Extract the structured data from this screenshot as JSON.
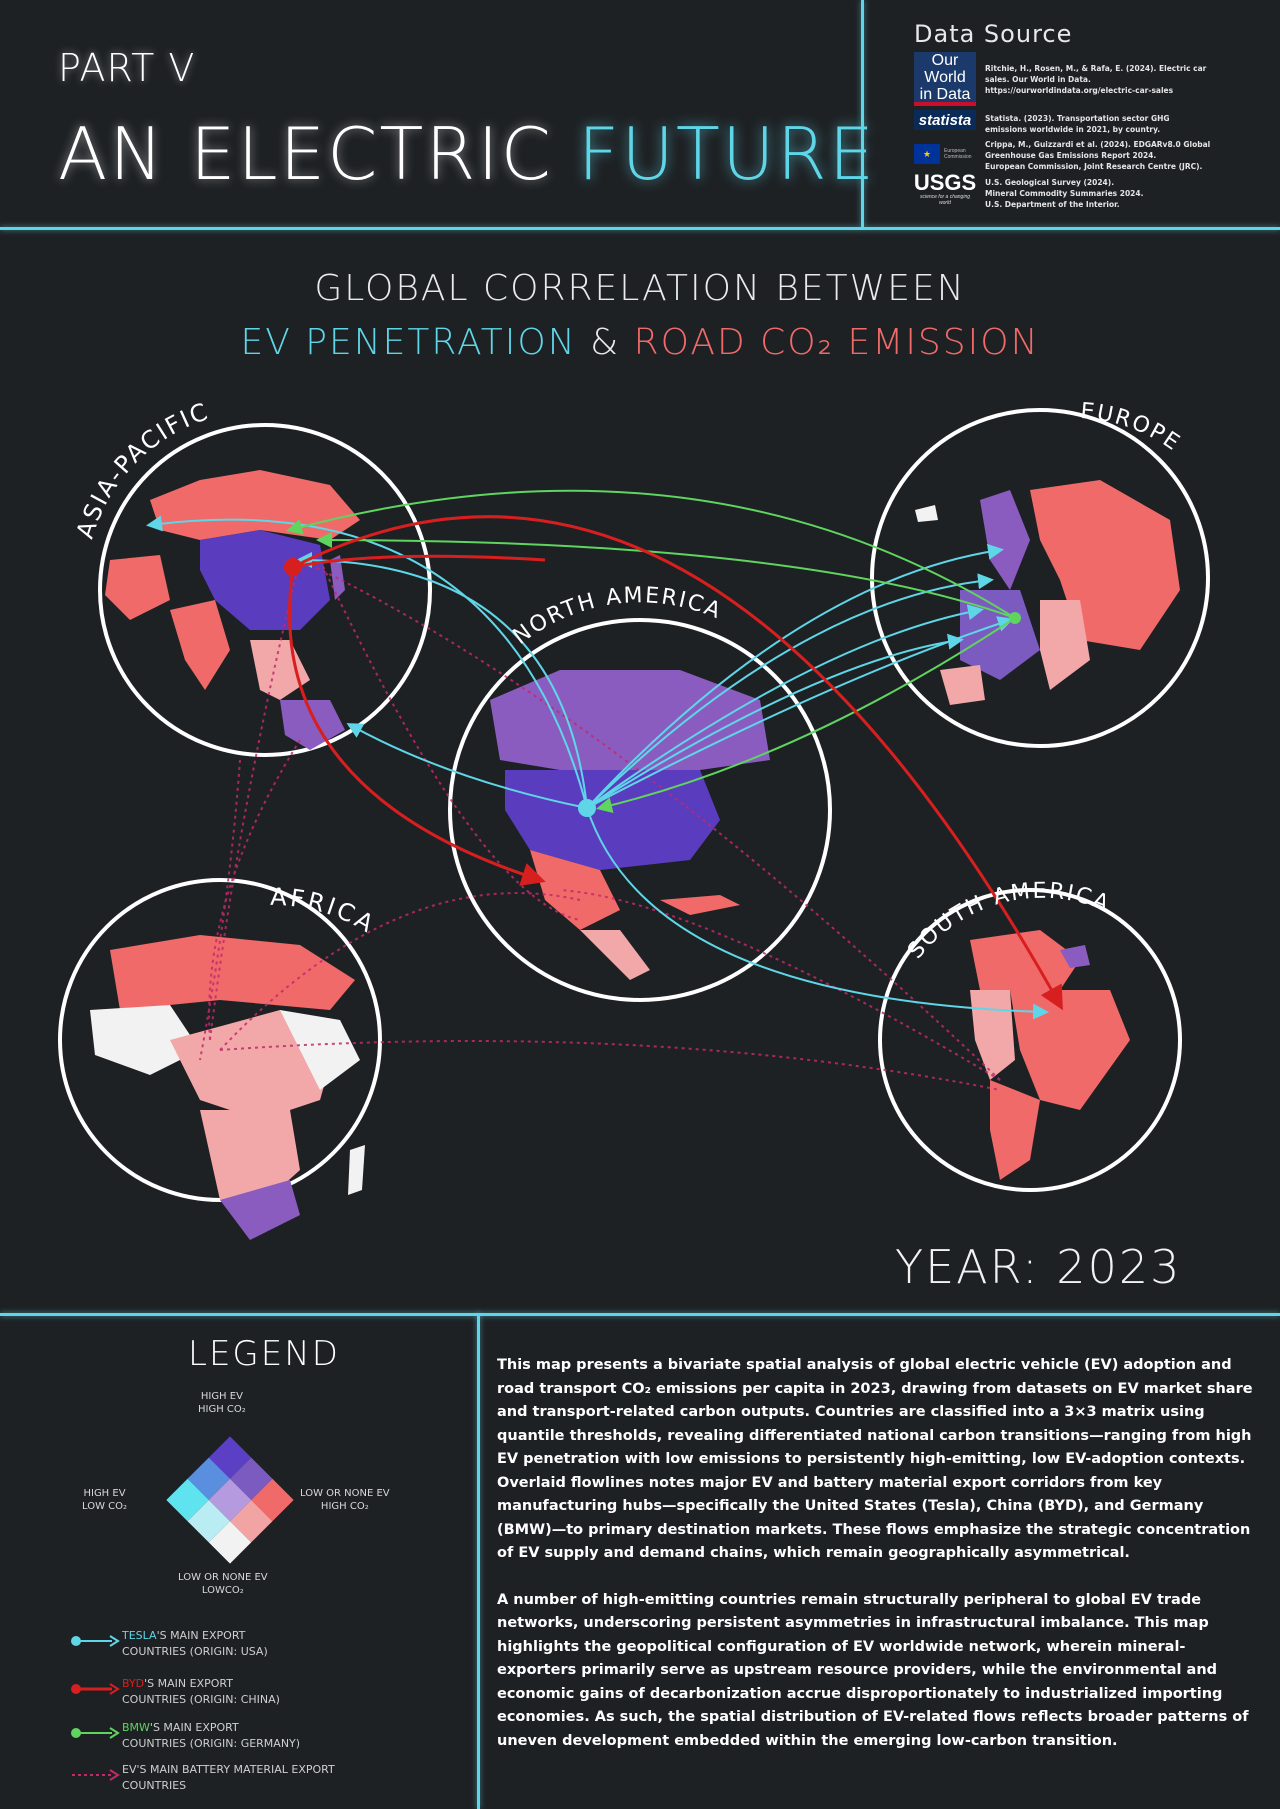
{
  "header": {
    "part": "PART V",
    "title_main": "AN ELECTRIC",
    "title_accent": "FUTURE"
  },
  "data_source": {
    "title": "Data Source",
    "logos": {
      "owid": "Our World in Data",
      "owid_line1": "Our World",
      "owid_line2": "in Data",
      "statista": "statista",
      "eu_line1": "European",
      "eu_line2": "Commission",
      "usgs": "USGS",
      "usgs_tagline": "science for a changing world"
    },
    "lines": [
      "Ritchie, H., Rosen, M., & Rafa, E. (2024). Electric car",
      "sales. Our World in Data.",
      "https://ourworldindata.org/electric-car-sales",
      "Statista. (2023). Transportation sector GHG",
      "emissions worldwide in 2021, by country.",
      "Crippa, M., Guizzardi et al. (2024). EDGARv8.0 Global",
      "Greenhouse Gas Emissions Report 2024.",
      "European Commission, Joint Research Centre (JRC).",
      "U.S. Geological Survey (2024).",
      "Mineral Commodity Summaries 2024.",
      "U.S. Department of the Interior."
    ]
  },
  "map": {
    "heading_line1": "GLOBAL CORRELATION BETWEEN",
    "heading_ev": "EV PENETRATION",
    "heading_amp": "&",
    "heading_co2": "ROAD CO₂ EMISSION",
    "regions": {
      "asia": "ASIA-PACIFIC",
      "europe": "EUROPE",
      "north_america": "NORTH AMERICA",
      "africa": "AFRICA",
      "south_america": "SOUTH AMERICA"
    },
    "year": "YEAR: 2023",
    "colors": {
      "tesla": "#5fd6e8",
      "byd": "#d81f1f",
      "bmw": "#5fd45f",
      "battery": "#c02a6a",
      "high_ev_high_co2": "#5a3dbf",
      "high_ev_mid": "#8a5cc0",
      "low_ev_high_co2": "#f06a6a",
      "low_ev_mid": "#f2a8a8",
      "low_ev_low_co2": "#f2f2f2"
    }
  },
  "legend": {
    "title": "LEGEND",
    "top": [
      "HIGH EV",
      "HIGH CO₂"
    ],
    "left": [
      "HIGH EV",
      "LOW CO₂"
    ],
    "right": [
      "LOW OR NONE EV",
      "HIGH CO₂"
    ],
    "bottom": [
      "LOW OR NONE EV",
      "LOWCO₂"
    ],
    "grid_colors": [
      "#5b3fc4",
      "#7b5bc0",
      "#f06a6a",
      "#5a8fe0",
      "#b59adf",
      "#f2a3a3",
      "#5fe3ef",
      "#b9ecf3",
      "#f2f2f2"
    ],
    "flows": [
      {
        "brand": "TESLA",
        "rest": "'S MAIN EXPORT",
        "line2": "COUNTRIES (ORIGIN: USA)",
        "color": "#5fd6e8"
      },
      {
        "brand": "BYD",
        "rest": "'S MAIN EXPORT",
        "line2": "COUNTRIES (ORIGIN: CHINA)",
        "color": "#d81f1f"
      },
      {
        "brand": "BMW",
        "rest": "'S MAIN EXPORT",
        "line2": "COUNTRIES (ORIGIN: GERMANY)",
        "color": "#5fd45f"
      },
      {
        "brand": "",
        "rest": "EV'S MAIN BATTERY MATERIAL EXPORT",
        "line2": "COUNTRIES",
        "color": "#c02a6a"
      }
    ]
  },
  "description": {
    "p1": "This map presents a bivariate spatial analysis of global electric vehicle (EV) adoption and road transport CO₂ emissions per capita in 2023, drawing from datasets on EV market share and transport-related carbon outputs. Countries are classified into a 3×3 matrix using quantile thresholds, revealing differentiated national carbon transitions—ranging from high EV penetration with low emissions to persistently high-emitting, low EV-adoption contexts. Overlaid flowlines notes major EV and battery material export corridors from key manufacturing hubs—specifically the United States (Tesla), China (BYD), and Germany (BMW)—to primary destination markets. These flows emphasize the strategic concentration of EV supply and demand chains, which remain geographically asymmetrical.",
    "p2": "A number of high-emitting countries remain structurally peripheral to global EV trade networks, underscoring persistent asymmetries in infrastructural imbalance. This map highlights the geopolitical configuration of EV worldwide network, wherein mineral-exporters primarily serve as upstream resource providers, while the environmental and economic gains of decarbonization accrue disproportionately to industrialized importing economies. As such, the spatial distribution of EV-related flows reflects broader patterns of uneven development embedded within the emerging low-carbon transition."
  }
}
